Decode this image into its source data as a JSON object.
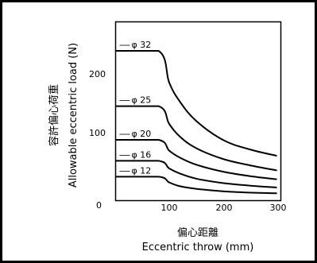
{
  "chart_data": {
    "type": "line",
    "title": "",
    "xlabel_jp": "偏心距離",
    "xlabel": "Eccentric throw (mm)",
    "ylabel_jp": "容許偏心荷重",
    "ylabel": "Allowable eccentric load (N)",
    "xlim": [
      0,
      300
    ],
    "ylim": [
      0,
      270
    ],
    "x_ticks": [
      100,
      200,
      300
    ],
    "y_ticks": [
      0,
      100,
      200
    ],
    "x_tick_labels": [
      "100",
      "200",
      "300"
    ],
    "y_tick_labels": [
      "0",
      "100",
      "200"
    ],
    "grid": false,
    "series": [
      {
        "name": "φ 32",
        "x": [
          0,
          80,
          100,
          120,
          150,
          200,
          250,
          300
        ],
        "y": [
          235,
          235,
          185,
          155,
          125,
          95,
          80,
          70
        ]
      },
      {
        "name": "φ 25",
        "x": [
          0,
          80,
          100,
          120,
          150,
          200,
          250,
          300
        ],
        "y": [
          148,
          148,
          120,
          100,
          82,
          65,
          55,
          47
        ]
      },
      {
        "name": "φ 20",
        "x": [
          0,
          80,
          100,
          120,
          150,
          200,
          250,
          300
        ],
        "y": [
          95,
          95,
          78,
          67,
          56,
          45,
          38,
          33
        ]
      },
      {
        "name": "φ 16",
        "x": [
          0,
          80,
          100,
          120,
          150,
          200,
          250,
          300
        ],
        "y": [
          62,
          62,
          50,
          42,
          34,
          27,
          23,
          20
        ]
      },
      {
        "name": "φ 12",
        "x": [
          0,
          80,
          100,
          120,
          150,
          200,
          250,
          300
        ],
        "y": [
          37,
          37,
          28,
          22,
          18,
          14,
          12,
          11
        ]
      }
    ]
  }
}
